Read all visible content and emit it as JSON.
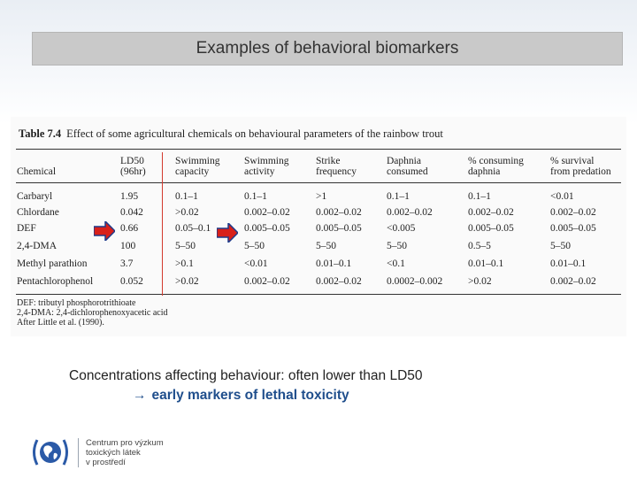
{
  "slide": {
    "title": "Examples of behavioral biomarkers"
  },
  "table": {
    "caption_label": "Table 7.4",
    "caption_text": "Effect of some agricultural chemicals on behavioural parameters of the rainbow trout",
    "headers": [
      "Chemical",
      "LD50\n(96hr)",
      "Swimming\ncapacity",
      "Swimming\nactivity",
      "Strike\nfrequency",
      "Daphnia\nconsumed",
      "% consuming\ndaphnia",
      "% survival\nfrom predation"
    ],
    "rows": [
      {
        "chemical": "Carbaryl",
        "values": [
          "1.95",
          "0.1–1",
          "0.1–1",
          ">1",
          "0.1–1",
          "0.1–1",
          "<0.01"
        ]
      },
      {
        "chemical": "Chlordane",
        "values": [
          "0.042",
          ">0.02",
          "0.002–0.02",
          "0.002–0.02",
          "0.002–0.02",
          "0.002–0.02",
          "0.002–0.02"
        ]
      },
      {
        "chemical": "DEF",
        "values": [
          "0.66",
          "0.05–0.1",
          "0.005–0.05",
          "0.005–0.05",
          "<0.005",
          "0.005–0.05",
          "0.005–0.05"
        ]
      },
      {
        "chemical": "2,4-DMA",
        "values": [
          "100",
          "5–50",
          "5–50",
          "5–50",
          "5–50",
          "0.5–5",
          "5–50"
        ]
      },
      {
        "chemical": "Methyl parathion",
        "values": [
          "3.7",
          ">0.1",
          "<0.01",
          "0.01–0.1",
          "<0.1",
          "0.01–0.1",
          "0.01–0.1"
        ]
      },
      {
        "chemical": "Pentachlorophenol",
        "values": [
          "0.052",
          ">0.02",
          "0.002–0.02",
          "0.002–0.02",
          "0.0002–0.002",
          ">0.02",
          "0.002–0.02"
        ]
      }
    ],
    "notes": [
      "DEF: tributyl phosphorotrithioate",
      "2,4-DMA: 2,4-dichlorophenoxyacetic acid",
      "After Little et al. (1990)."
    ],
    "accent_color": "#d23a2e"
  },
  "body_text": {
    "line1": "Concentrations affecting behaviour: often lower than LD50",
    "arrow": "→",
    "line2": "early markers of lethal toxicity"
  },
  "logo": {
    "line1": "Centrum pro výzkum",
    "line2": "toxických látek",
    "line3": "v prostředí"
  }
}
